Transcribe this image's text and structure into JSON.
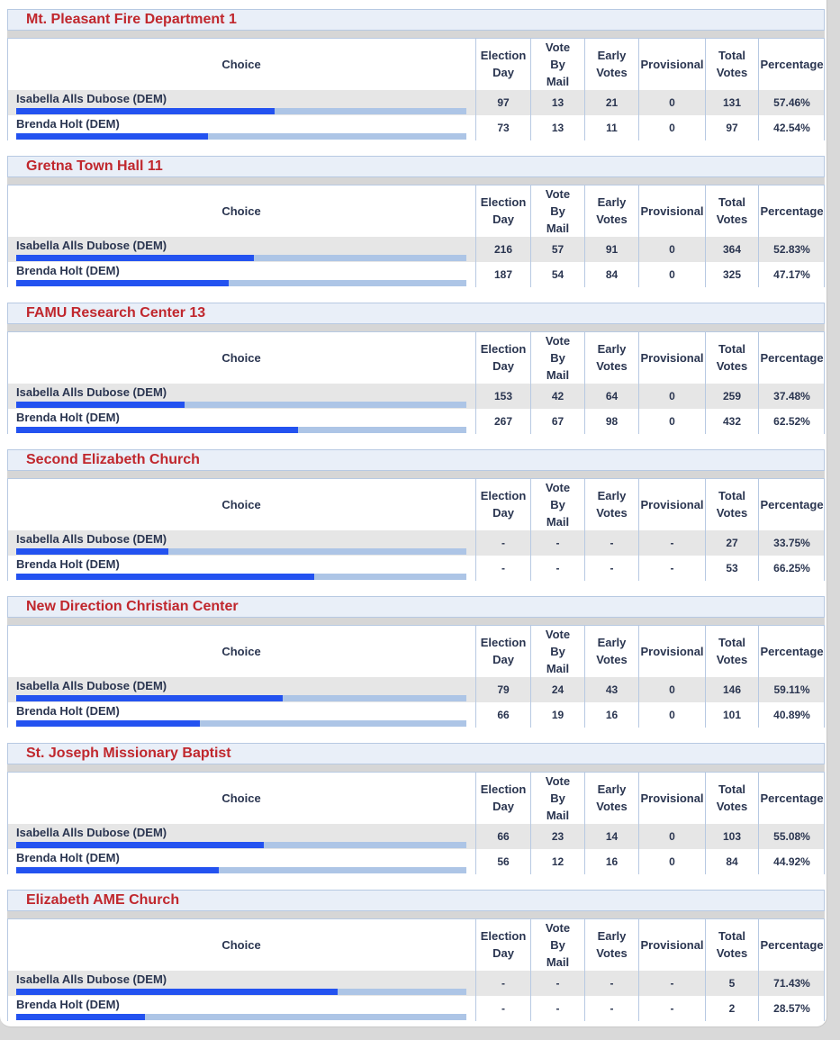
{
  "columns": [
    "Choice",
    "Election Day",
    "Vote By Mail",
    "Early Votes",
    "Provisional",
    "Total Votes",
    "Percentage"
  ],
  "blocks": [
    {
      "title": "Mt. Pleasant Fire Department 1",
      "rows": [
        {
          "choice": "Isabella Alls Dubose (DEM)",
          "cells": [
            97,
            13,
            21,
            0,
            131
          ],
          "percentage": 57.46,
          "percentage_label": "57.46%"
        },
        {
          "choice": "Brenda Holt (DEM)",
          "cells": [
            73,
            13,
            11,
            0,
            97
          ],
          "percentage": 42.54,
          "percentage_label": "42.54%"
        }
      ]
    },
    {
      "title": "Gretna Town Hall 11",
      "rows": [
        {
          "choice": "Isabella Alls Dubose (DEM)",
          "cells": [
            216,
            57,
            91,
            0,
            364
          ],
          "percentage": 52.83,
          "percentage_label": "52.83%"
        },
        {
          "choice": "Brenda Holt (DEM)",
          "cells": [
            187,
            54,
            84,
            0,
            325
          ],
          "percentage": 47.17,
          "percentage_label": "47.17%"
        }
      ]
    },
    {
      "title": "FAMU Research Center 13",
      "rows": [
        {
          "choice": "Isabella Alls Dubose (DEM)",
          "cells": [
            153,
            42,
            64,
            0,
            259
          ],
          "percentage": 37.48,
          "percentage_label": "37.48%"
        },
        {
          "choice": "Brenda Holt (DEM)",
          "cells": [
            267,
            67,
            98,
            0,
            432
          ],
          "percentage": 62.52,
          "percentage_label": "62.52%"
        }
      ]
    },
    {
      "title": "Second Elizabeth Church",
      "rows": [
        {
          "choice": "Isabella Alls Dubose (DEM)",
          "cells": [
            "-",
            "-",
            "-",
            "-",
            27
          ],
          "percentage": 33.75,
          "percentage_label": "33.75%"
        },
        {
          "choice": "Brenda Holt (DEM)",
          "cells": [
            "-",
            "-",
            "-",
            "-",
            53
          ],
          "percentage": 66.25,
          "percentage_label": "66.25%"
        }
      ]
    },
    {
      "title": "New Direction Christian Center",
      "rows": [
        {
          "choice": "Isabella Alls Dubose (DEM)",
          "cells": [
            79,
            24,
            43,
            0,
            146
          ],
          "percentage": 59.11,
          "percentage_label": "59.11%"
        },
        {
          "choice": "Brenda Holt (DEM)",
          "cells": [
            66,
            19,
            16,
            0,
            101
          ],
          "percentage": 40.89,
          "percentage_label": "40.89%"
        }
      ]
    },
    {
      "title": "St. Joseph Missionary Baptist",
      "rows": [
        {
          "choice": "Isabella Alls Dubose (DEM)",
          "cells": [
            66,
            23,
            14,
            0,
            103
          ],
          "percentage": 55.08,
          "percentage_label": "55.08%"
        },
        {
          "choice": "Brenda Holt (DEM)",
          "cells": [
            56,
            12,
            16,
            0,
            84
          ],
          "percentage": 44.92,
          "percentage_label": "44.92%"
        }
      ]
    },
    {
      "title": "Elizabeth AME Church",
      "rows": [
        {
          "choice": "Isabella Alls Dubose (DEM)",
          "cells": [
            "-",
            "-",
            "-",
            "-",
            5
          ],
          "percentage": 71.43,
          "percentage_label": "71.43%"
        },
        {
          "choice": "Brenda Holt (DEM)",
          "cells": [
            "-",
            "-",
            "-",
            "-",
            2
          ],
          "percentage": 28.57,
          "percentage_label": "28.57%"
        }
      ]
    }
  ]
}
